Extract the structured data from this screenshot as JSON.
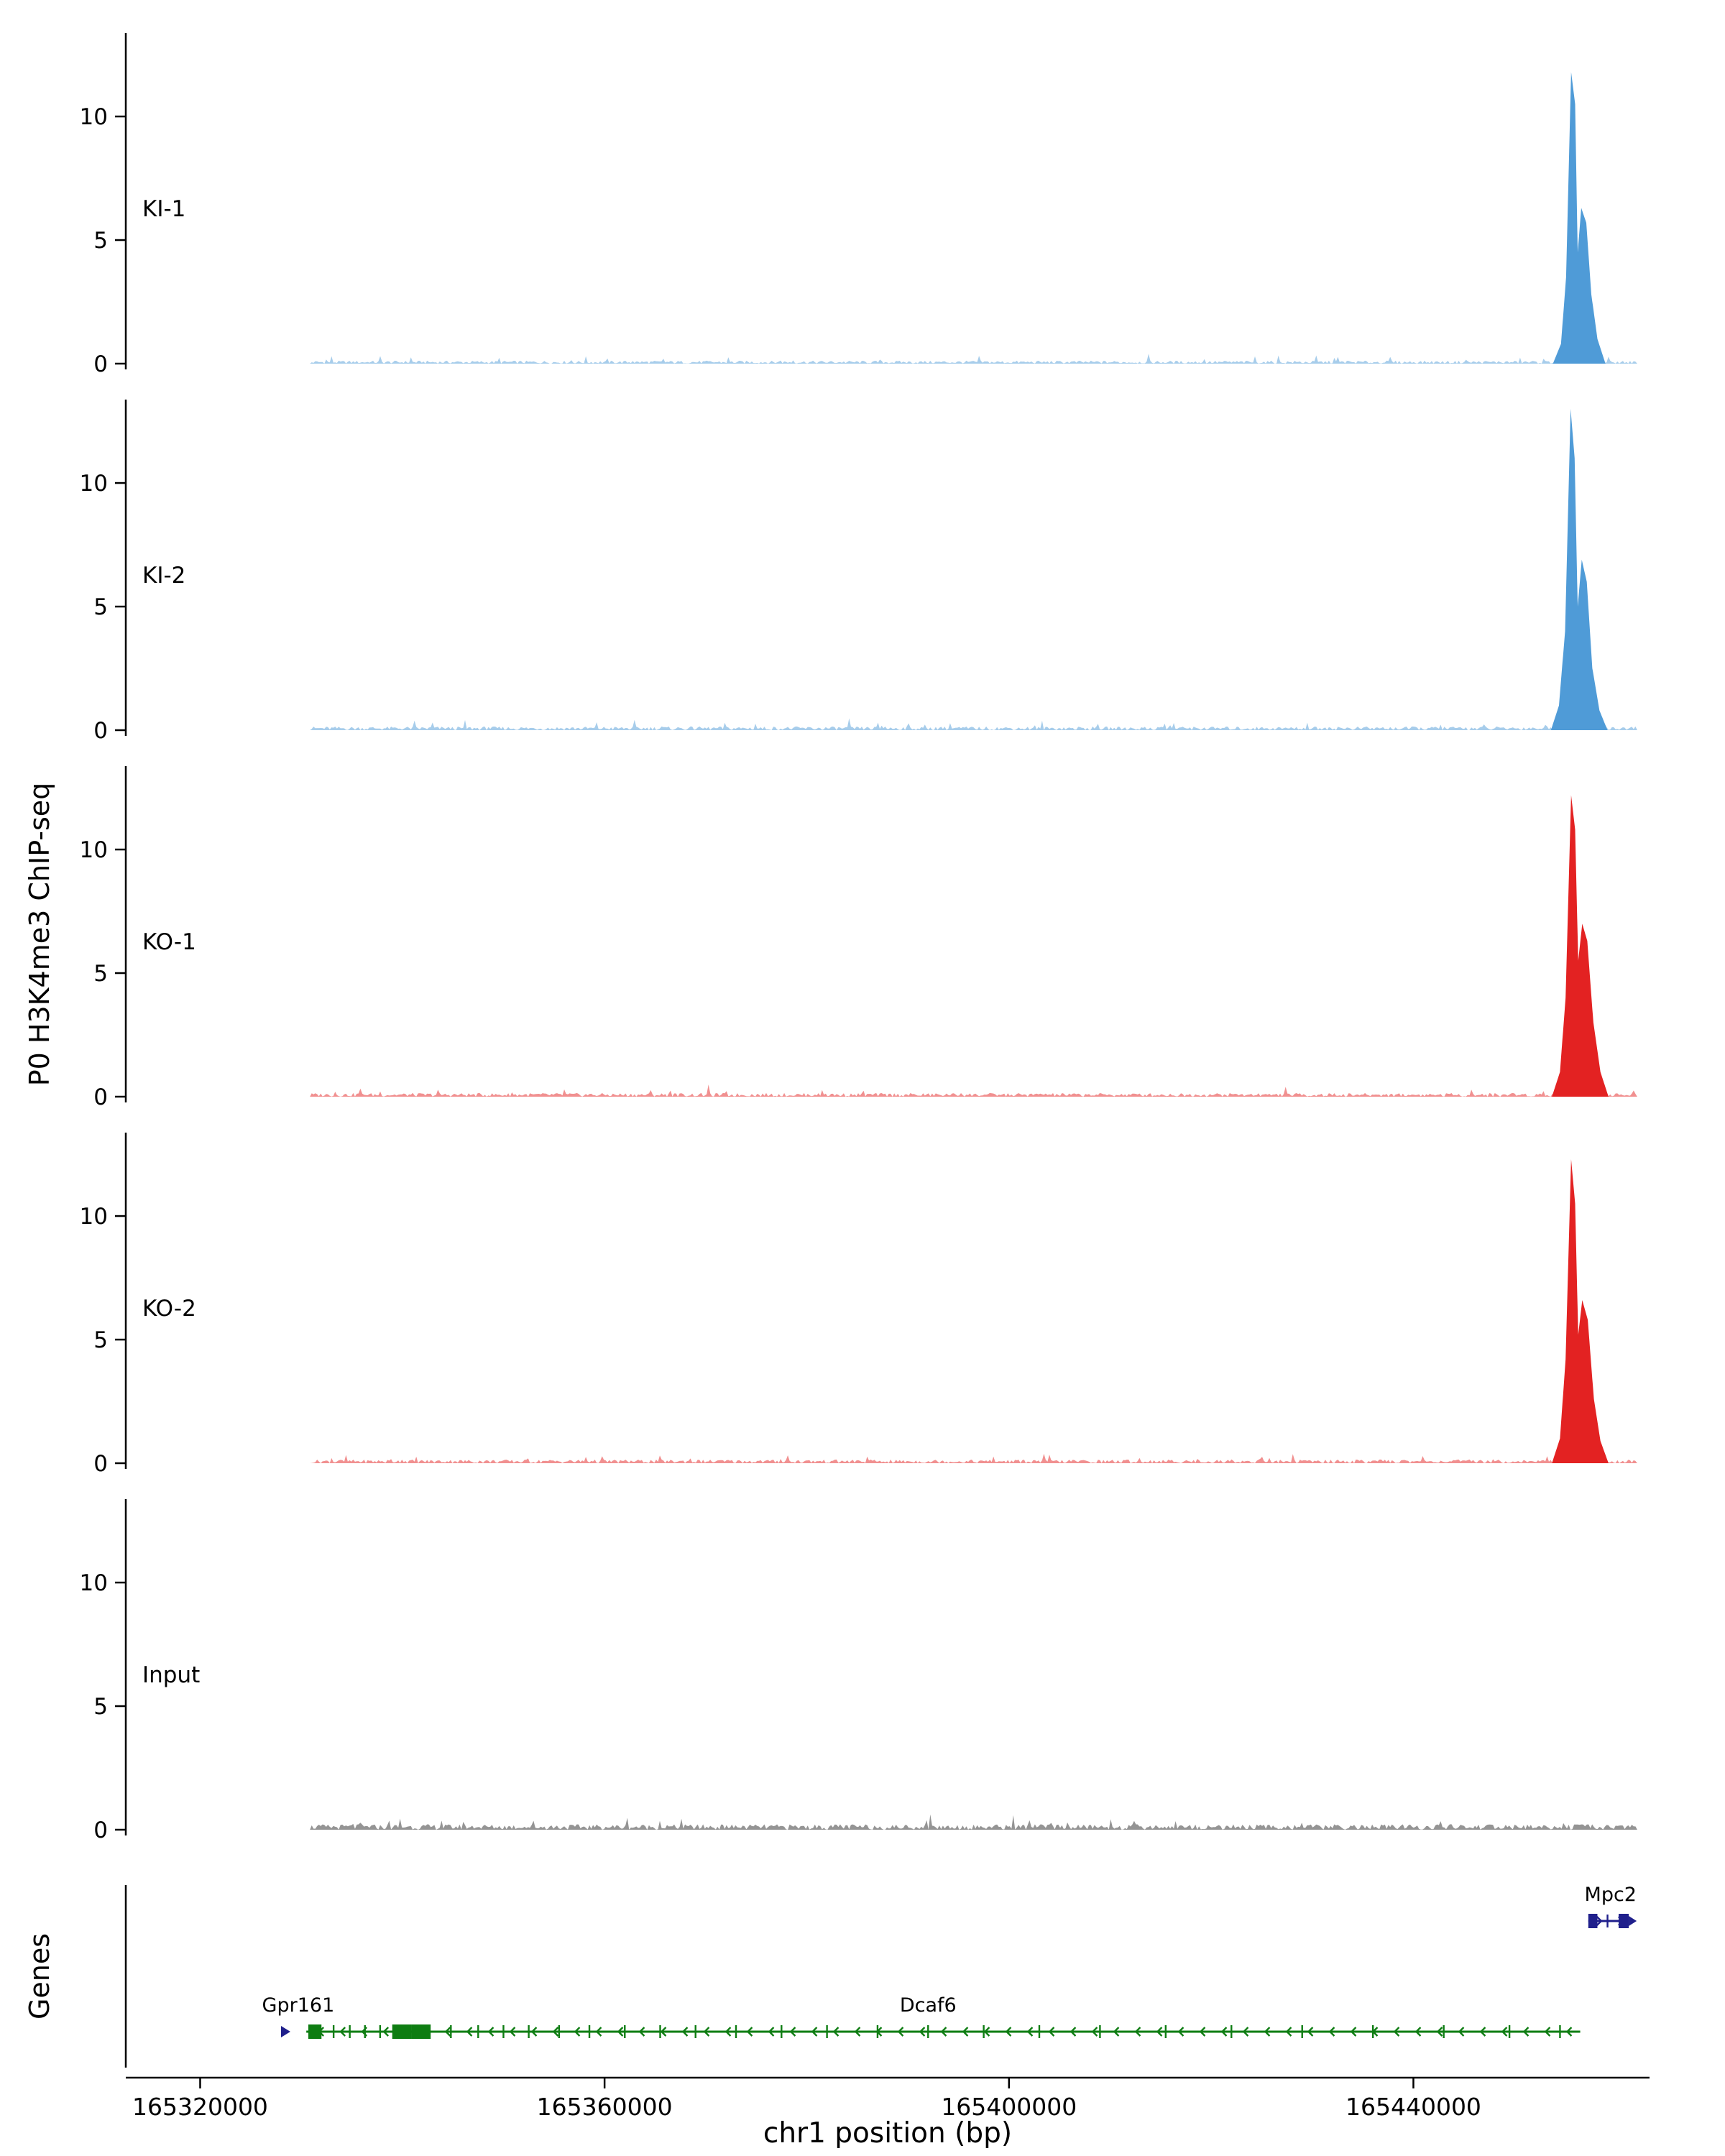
{
  "labels": {
    "y_axis": "P0 H3K4me3 ChIP-seq",
    "genes_axis": "Genes",
    "x_axis": "chr1 position (bp)"
  },
  "chart_data": {
    "type": "area",
    "title": "",
    "xlabel": "chr1 position (bp)",
    "ylabel": "P0 H3K4me3 ChIP-seq",
    "legend": "none",
    "grid": false,
    "xlim": [
      165313000,
      165463000
    ],
    "ylim": [
      0,
      13.2
    ],
    "yticks": [
      0,
      5,
      10
    ],
    "xticks": [
      165320000,
      165360000,
      165400000,
      165440000
    ],
    "tracks": [
      {
        "name": "KI-1",
        "color": "#4f9bd7",
        "noise_amp": 0.12,
        "seed": 1,
        "data_start": 165330500,
        "data_end": 165462500,
        "peak": [
          [
            165453800,
            0
          ],
          [
            165454600,
            0.8
          ],
          [
            165455100,
            3.5
          ],
          [
            165455600,
            11.8
          ],
          [
            165456000,
            10.5
          ],
          [
            165456250,
            4.5
          ],
          [
            165456600,
            6.3
          ],
          [
            165457100,
            5.7
          ],
          [
            165457600,
            2.8
          ],
          [
            165458200,
            1.0
          ],
          [
            165459000,
            0
          ]
        ]
      },
      {
        "name": "KI-2",
        "color": "#4f9bd7",
        "noise_amp": 0.15,
        "seed": 2,
        "data_start": 165330500,
        "data_end": 165462500,
        "peak": [
          [
            165453600,
            0
          ],
          [
            165454400,
            1.0
          ],
          [
            165455000,
            4.0
          ],
          [
            165455550,
            13.0
          ],
          [
            165455950,
            11.0
          ],
          [
            165456250,
            5.0
          ],
          [
            165456650,
            6.9
          ],
          [
            165457150,
            6.0
          ],
          [
            165457700,
            2.5
          ],
          [
            165458400,
            0.8
          ],
          [
            165459200,
            0
          ]
        ]
      },
      {
        "name": "KO-1",
        "color": "#e32222",
        "noise_amp": 0.15,
        "seed": 3,
        "data_start": 165330500,
        "data_end": 165462500,
        "peak": [
          [
            165453700,
            0
          ],
          [
            165454500,
            1.0
          ],
          [
            165455050,
            4.0
          ],
          [
            165455600,
            12.2
          ],
          [
            165456000,
            10.8
          ],
          [
            165456300,
            5.5
          ],
          [
            165456700,
            7.0
          ],
          [
            165457200,
            6.3
          ],
          [
            165457800,
            3.0
          ],
          [
            165458500,
            1.0
          ],
          [
            165459300,
            0
          ]
        ]
      },
      {
        "name": "KO-2",
        "color": "#e32222",
        "noise_amp": 0.15,
        "seed": 4,
        "data_start": 165330500,
        "data_end": 165462500,
        "peak": [
          [
            165453700,
            0
          ],
          [
            165454500,
            1.0
          ],
          [
            165455050,
            4.2
          ],
          [
            165455600,
            12.3
          ],
          [
            165456000,
            10.5
          ],
          [
            165456300,
            5.2
          ],
          [
            165456700,
            6.6
          ],
          [
            165457250,
            5.8
          ],
          [
            165457850,
            2.6
          ],
          [
            165458500,
            0.9
          ],
          [
            165459300,
            0
          ]
        ]
      },
      {
        "name": "Input",
        "color": "#2a2a2a",
        "noise_amp": 0.22,
        "seed": 5,
        "data_start": 165330500,
        "data_end": 165462500,
        "peak": []
      }
    ],
    "genes": [
      {
        "name": "",
        "marker": true,
        "color": "#20208c",
        "row": 2,
        "start": 165328000,
        "end": 165328900,
        "strand": "+",
        "label_bp": 0,
        "exons": [],
        "ticks": []
      },
      {
        "name": "Gpr161",
        "color": "#0e7d12",
        "row": 2,
        "start": 165330500,
        "end": 165340900,
        "strand": "-",
        "label_bp": 165329700,
        "exons": [
          [
            165330700,
            165332000
          ],
          [
            165339000,
            165340900
          ]
        ],
        "ticks": [
          165333200,
          165334800,
          165336300,
          165337800
        ]
      },
      {
        "name": "Dcaf6",
        "color": "#0e7d12",
        "row": 2,
        "start": 165340900,
        "end": 165456500,
        "strand": "-",
        "label_bp": 165392000,
        "exons": [
          [
            165340900,
            165342800
          ]
        ],
        "ticks": [
          165344800,
          165347500,
          165350000,
          165352500,
          165355500,
          165358500,
          165362000,
          165365500,
          165369000,
          165373000,
          165377500,
          165382000,
          165387000,
          165392000,
          165397500,
          165403000,
          165409000,
          165415500,
          165422000,
          165429000,
          165436000,
          165443000,
          165449500,
          165454500
        ]
      },
      {
        "name": "Mpc2",
        "color": "#20208c",
        "row": 1,
        "start": 165457300,
        "end": 165461300,
        "strand": "+",
        "label_bp": 165459500,
        "exons": [
          [
            165457300,
            165458200
          ],
          [
            165460300,
            165461300
          ]
        ],
        "ticks": [
          165459200
        ]
      }
    ]
  }
}
